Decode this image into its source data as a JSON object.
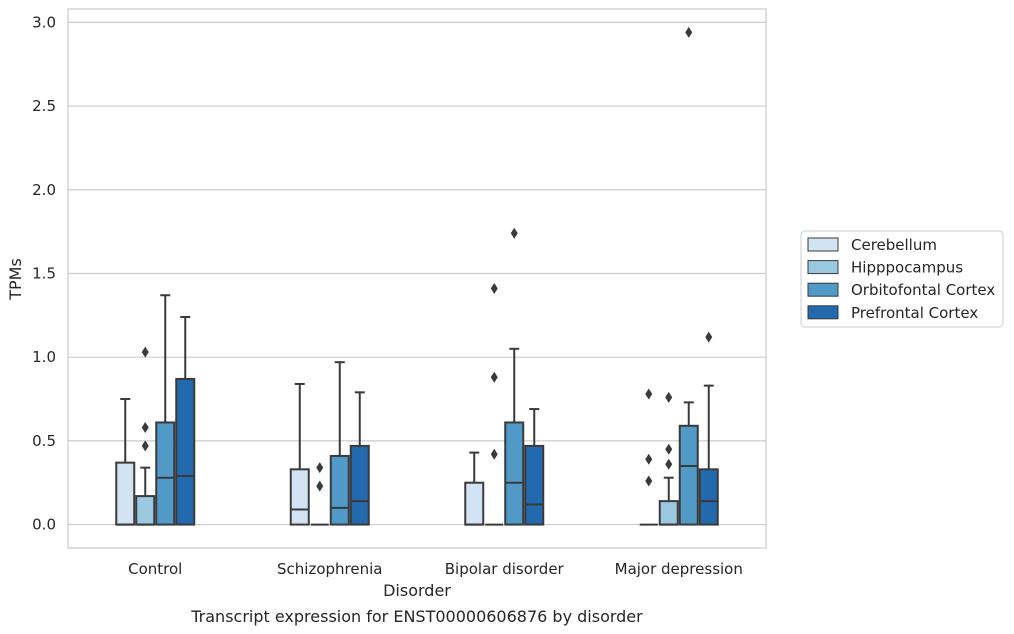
{
  "chart_data": {
    "type": "box",
    "title": "",
    "caption": "Transcript expression for ENST00000606876 by disorder",
    "xlabel": "Disorder",
    "ylabel": "TPMs",
    "ylim": [
      -0.14,
      3.08
    ],
    "yticks": [
      0.0,
      0.5,
      1.0,
      1.5,
      2.0,
      2.5,
      3.0
    ],
    "ytick_labels": [
      "0.0",
      "0.5",
      "1.0",
      "1.5",
      "2.0",
      "2.5",
      "3.0"
    ],
    "grid": "horizontal",
    "legend_position": "right",
    "categories": [
      "Control",
      "Schizophrenia",
      "Bipolar disorder",
      "Major depression"
    ],
    "series": [
      {
        "name": "Cerebellum",
        "color": "#d2e3f3",
        "boxes": [
          {
            "min": 0.0,
            "q1": 0.0,
            "median": 0.0,
            "q3": 0.37,
            "max": 0.75,
            "outliers": []
          },
          {
            "min": 0.0,
            "q1": 0.0,
            "median": 0.09,
            "q3": 0.33,
            "max": 0.84,
            "outliers": []
          },
          {
            "min": 0.0,
            "q1": 0.0,
            "median": 0.0,
            "q3": 0.25,
            "max": 0.43,
            "outliers": []
          },
          {
            "min": 0.0,
            "q1": 0.0,
            "median": 0.0,
            "q3": 0.0,
            "max": 0.0,
            "outliers": [
              0.26,
              0.39,
              0.78
            ]
          }
        ]
      },
      {
        "name": "Hipppocampus",
        "color": "#9ac8e0",
        "boxes": [
          {
            "min": 0.0,
            "q1": 0.0,
            "median": 0.0,
            "q3": 0.17,
            "max": 0.34,
            "outliers": [
              0.47,
              0.58,
              1.03
            ]
          },
          {
            "min": 0.0,
            "q1": 0.0,
            "median": 0.0,
            "q3": 0.0,
            "max": 0.0,
            "outliers": [
              0.23,
              0.34
            ]
          },
          {
            "min": 0.0,
            "q1": 0.0,
            "median": 0.0,
            "q3": 0.0,
            "max": 0.0,
            "outliers": [
              0.42,
              0.88,
              1.41
            ]
          },
          {
            "min": 0.0,
            "q1": 0.0,
            "median": 0.0,
            "q3": 0.14,
            "max": 0.28,
            "outliers": [
              0.36,
              0.45,
              0.76
            ]
          }
        ]
      },
      {
        "name": "Orbitofontal Cortex",
        "color": "#5199c7",
        "boxes": [
          {
            "min": 0.0,
            "q1": 0.0,
            "median": 0.28,
            "q3": 0.61,
            "max": 1.37,
            "outliers": []
          },
          {
            "min": 0.0,
            "q1": 0.0,
            "median": 0.1,
            "q3": 0.41,
            "max": 0.97,
            "outliers": []
          },
          {
            "min": 0.0,
            "q1": 0.0,
            "median": 0.25,
            "q3": 0.61,
            "max": 1.05,
            "outliers": [
              1.74
            ]
          },
          {
            "min": 0.0,
            "q1": 0.0,
            "median": 0.35,
            "q3": 0.59,
            "max": 0.73,
            "outliers": [
              2.94
            ]
          }
        ]
      },
      {
        "name": "Prefrontal Cortex",
        "color": "#2369ad",
        "boxes": [
          {
            "min": 0.0,
            "q1": 0.0,
            "median": 0.29,
            "q3": 0.87,
            "max": 1.24,
            "outliers": []
          },
          {
            "min": 0.0,
            "q1": 0.0,
            "median": 0.14,
            "q3": 0.47,
            "max": 0.79,
            "outliers": []
          },
          {
            "min": 0.0,
            "q1": 0.0,
            "median": 0.12,
            "q3": 0.47,
            "max": 0.69,
            "outliers": []
          },
          {
            "min": 0.0,
            "q1": 0.0,
            "median": 0.14,
            "q3": 0.33,
            "max": 0.83,
            "outliers": [
              1.12
            ]
          }
        ]
      }
    ]
  }
}
